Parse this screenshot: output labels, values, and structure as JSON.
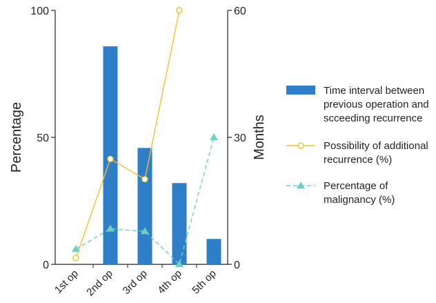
{
  "chart_data": {
    "type": "bar",
    "categories": [
      "1st op",
      "2nd op",
      "3rd op",
      "4th op",
      "5th op"
    ],
    "left_axis": {
      "label": "Percentage",
      "ticks": [
        "0",
        "50",
        "100"
      ],
      "ylim": [
        0,
        100
      ]
    },
    "right_axis": {
      "label": "Months",
      "ticks": [
        "0",
        "30",
        "60"
      ],
      "ylim": [
        0,
        60
      ]
    },
    "series": [
      {
        "name": "Time interval between previous operation and scceeding recurrence",
        "legend_lines": [
          "Time interval between",
          "previous operation and",
          "scceeding recurrence"
        ],
        "type": "bar",
        "axis": "right",
        "color": "#2f7fc8",
        "values": [
          null,
          51.5,
          27.5,
          19.2,
          6
        ]
      },
      {
        "name": "Possibility of additional recurrence (%)",
        "legend_lines": [
          "Possibility of additional",
          "recurrence (%)"
        ],
        "type": "line",
        "axis": "left",
        "color": "#f2c12e",
        "marker": "circle",
        "dash": "solid",
        "values": [
          2.5,
          41.5,
          33.5,
          100,
          null
        ]
      },
      {
        "name": "Percentage of malignancy (%)",
        "legend_lines": [
          "Percentage of",
          "malignancy (%)"
        ],
        "type": "line",
        "axis": "left",
        "color": "#6fcfc0",
        "marker": "triangle",
        "dash": "dashed",
        "values": [
          6,
          14,
          13,
          0,
          50
        ]
      }
    ]
  }
}
